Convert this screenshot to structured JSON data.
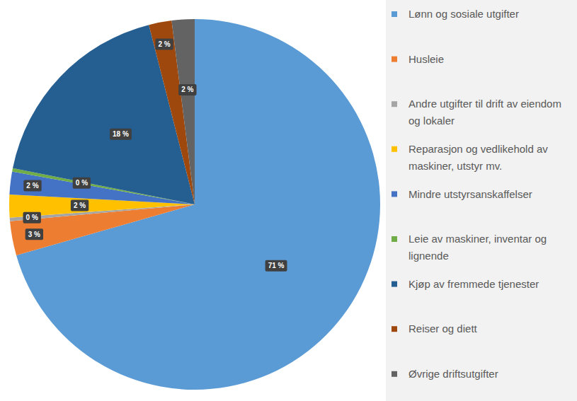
{
  "chart_data": {
    "type": "pie",
    "categories": [
      "Lønn og sosiale utgifter",
      "Husleie",
      "Andre utgifter til drift av eiendom og lokaler",
      "Reparasjon og vedlikehold av maskiner, utstyr mv.",
      "Mindre utstyrsanskaffelser",
      "Leie av maskiner, inventar og lignende",
      "Kjøp av fremmede tjenester",
      "Reiser og diett",
      "Øvrige driftsutgifter"
    ],
    "values": [
      71,
      3,
      0.3,
      2,
      2,
      0.3,
      18,
      2,
      2
    ],
    "value_labels": [
      "71 %",
      "3 %",
      "0 %",
      "2 %",
      "2 %",
      "0 %",
      "18 %",
      "2 %",
      "2 %"
    ],
    "colors": [
      "#5b9bd5",
      "#ed7d31",
      "#a5a5a5",
      "#ffc000",
      "#4472c4",
      "#70ad47",
      "#255e91",
      "#9e480e",
      "#636363"
    ],
    "data_labels": true,
    "legend": "right"
  }
}
